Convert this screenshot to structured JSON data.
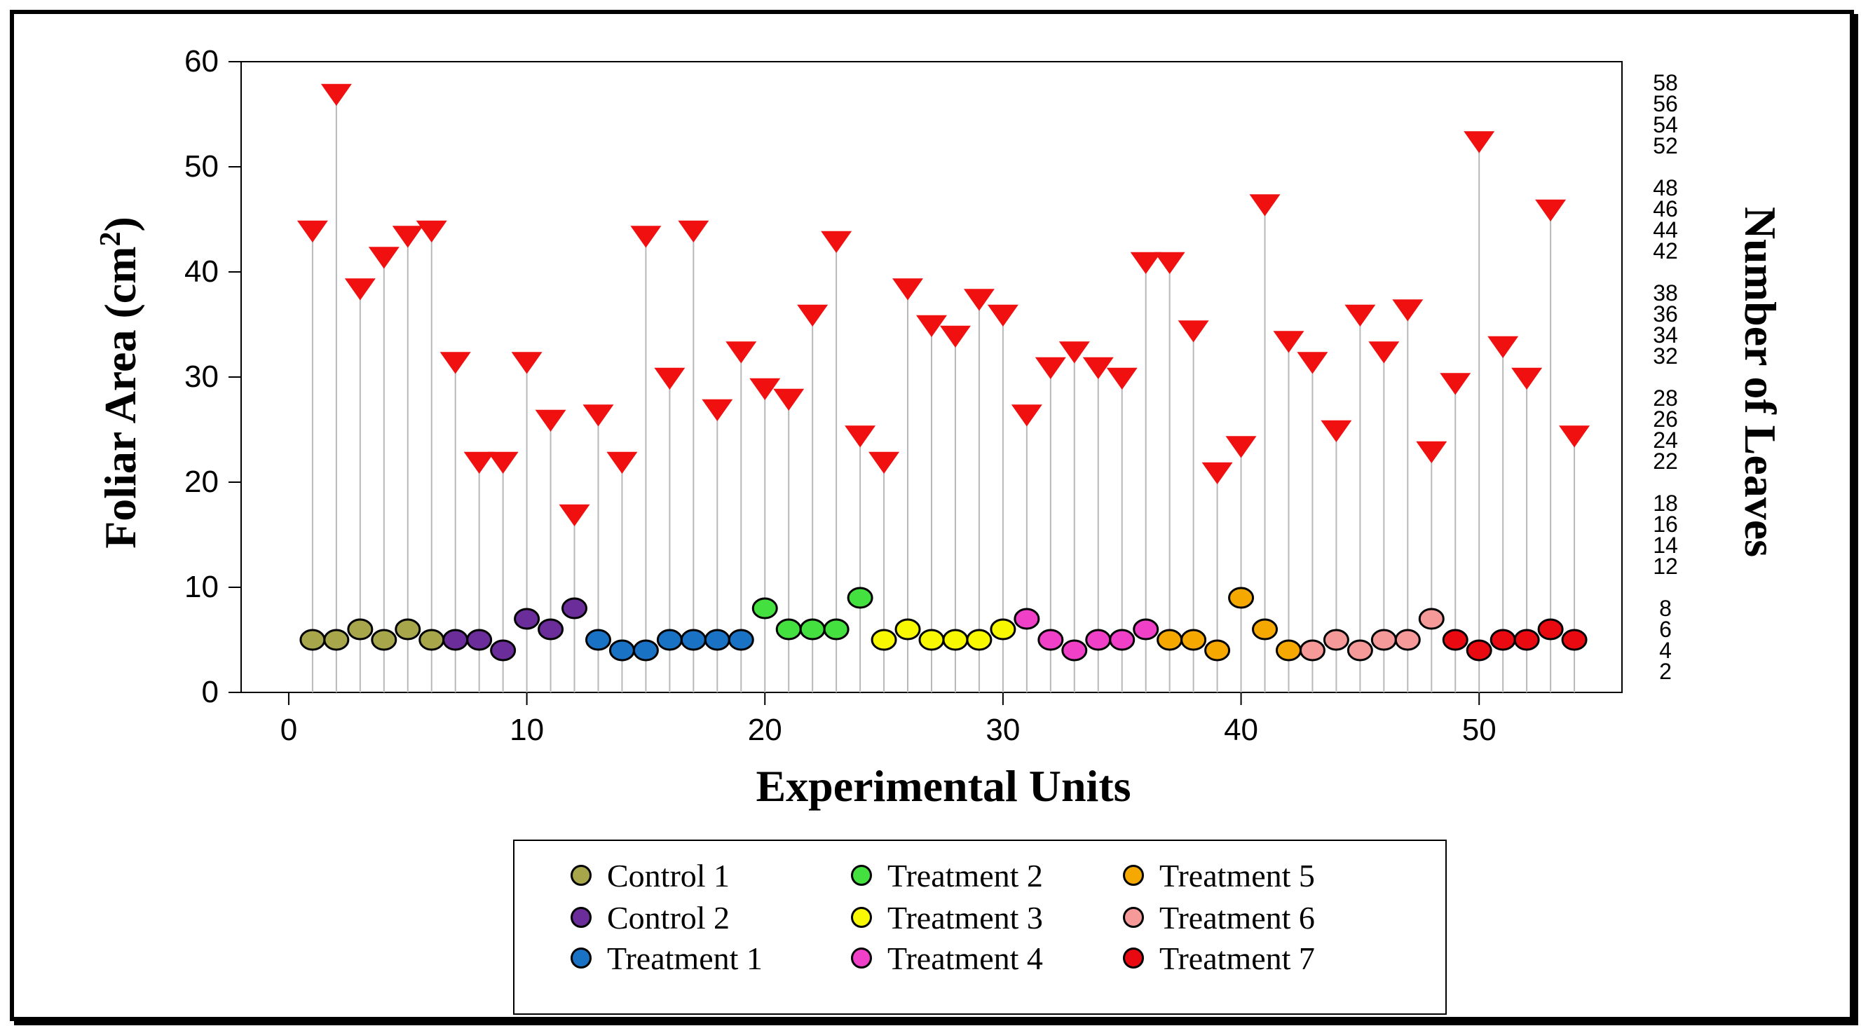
{
  "chart_data": {
    "type": "scatter",
    "xlabel": "Experimental Units",
    "ylabel": "Foliar Area (cm²)",
    "ylabel_parts": {
      "main": "Foliar Area (cm",
      "sup": "2",
      "end": ")"
    },
    "y2label": "Number of Leaves",
    "xlim": [
      -2,
      56
    ],
    "ylim": [
      0,
      60
    ],
    "y2lim": [
      0,
      60
    ],
    "xticks": [
      0,
      10,
      20,
      30,
      40,
      50
    ],
    "xtick_labels": [
      "0",
      "10",
      "20",
      "30",
      "40",
      "50"
    ],
    "yticks": [
      0,
      10,
      20,
      30,
      40,
      50,
      60
    ],
    "ytick_labels": [
      "0",
      "10",
      "20",
      "30",
      "40",
      "50",
      "60"
    ],
    "y2ticks": [
      2,
      4,
      6,
      8,
      12,
      14,
      16,
      18,
      22,
      24,
      26,
      28,
      32,
      34,
      36,
      38,
      42,
      44,
      46,
      48,
      52,
      54,
      56,
      58
    ],
    "y2tick_labels": [
      "2",
      "4",
      "6",
      "8",
      "12",
      "14",
      "16",
      "18",
      "22",
      "24",
      "26",
      "28",
      "32",
      "34",
      "36",
      "38",
      "42",
      "44",
      "46",
      "48",
      "52",
      "54",
      "56",
      "58"
    ],
    "groups": [
      {
        "name": "Control 1",
        "color": "#a8a64a"
      },
      {
        "name": "Control 2",
        "color": "#6a2d9a"
      },
      {
        "name": "Treatment 1",
        "color": "#1a72c4"
      },
      {
        "name": "Treatment 2",
        "color": "#44e040"
      },
      {
        "name": "Treatment 3",
        "color": "#f8f800"
      },
      {
        "name": "Treatment 4",
        "color": "#f040c8"
      },
      {
        "name": "Treatment 5",
        "color": "#f5a800"
      },
      {
        "name": "Treatment 6",
        "color": "#f59a98"
      },
      {
        "name": "Treatment 7",
        "color": "#e80a10"
      }
    ],
    "leaves_marker_color": "#f01010",
    "series": [
      {
        "name": "Foliar Area",
        "x": [
          1,
          2,
          3,
          4,
          5,
          6,
          7,
          8,
          9,
          10,
          11,
          12,
          13,
          14,
          15,
          16,
          17,
          18,
          19,
          20,
          21,
          22,
          23,
          24,
          25,
          26,
          27,
          28,
          29,
          30,
          31,
          32,
          33,
          34,
          35,
          36,
          37,
          38,
          39,
          40,
          41,
          42,
          43,
          44,
          45,
          46,
          47,
          48,
          49,
          50,
          51,
          52,
          53,
          54
        ],
        "values": [
          5,
          5,
          6,
          5,
          6,
          5,
          5,
          5,
          4,
          7,
          6,
          8,
          5,
          4,
          4,
          5,
          5,
          5,
          5,
          8,
          6,
          6,
          6,
          9,
          5,
          6,
          5,
          5,
          5,
          6,
          7,
          5,
          4,
          5,
          5,
          6,
          5,
          5,
          4,
          9,
          6,
          4,
          4,
          5,
          4,
          5,
          5,
          7,
          5,
          4,
          5,
          5,
          6,
          5
        ],
        "group": [
          0,
          0,
          0,
          0,
          0,
          0,
          1,
          1,
          1,
          1,
          1,
          1,
          2,
          2,
          2,
          2,
          2,
          2,
          2,
          3,
          3,
          3,
          3,
          3,
          4,
          4,
          4,
          4,
          4,
          4,
          5,
          5,
          5,
          5,
          5,
          5,
          6,
          6,
          6,
          6,
          6,
          6,
          7,
          7,
          7,
          7,
          7,
          7,
          8,
          8,
          8,
          8,
          8,
          8
        ]
      },
      {
        "name": "Number of Leaves",
        "x": [
          1,
          2,
          3,
          4,
          5,
          6,
          7,
          8,
          9,
          10,
          11,
          12,
          13,
          14,
          15,
          16,
          17,
          18,
          19,
          20,
          21,
          22,
          23,
          24,
          25,
          26,
          27,
          28,
          29,
          30,
          31,
          32,
          33,
          34,
          35,
          36,
          37,
          38,
          39,
          40,
          41,
          42,
          43,
          44,
          45,
          46,
          47,
          48,
          49,
          50,
          51,
          52,
          53,
          54
        ],
        "values": [
          44,
          57,
          38.5,
          41.5,
          43.5,
          44,
          31.5,
          22,
          22,
          31.5,
          26,
          17,
          26.5,
          22,
          43.5,
          30,
          44,
          27,
          32.5,
          29,
          28,
          36,
          43,
          24.5,
          22,
          38.5,
          35,
          34,
          37.5,
          36,
          26.5,
          31,
          32.5,
          31,
          30,
          41,
          41,
          34.5,
          21,
          23.5,
          46.5,
          33.5,
          31.5,
          25,
          36,
          32.5,
          36.5,
          23,
          29.5,
          52.5,
          33,
          30,
          46,
          24.5
        ]
      }
    ]
  }
}
